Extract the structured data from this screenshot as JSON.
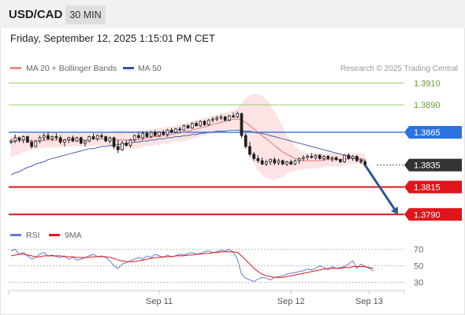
{
  "header": {
    "symbol": "USD/CAD",
    "interval": "30 MIN",
    "datetime": "Friday, September 12, 2025 1:15:01 PM CET"
  },
  "legend": {
    "items": [
      {
        "label": "MA 20 + Bollinger Bands",
        "color": "#f2898a"
      },
      {
        "label": "MA 50",
        "color": "#2b5797"
      }
    ],
    "copyright": "Research © 2025 Trading Central"
  },
  "colors": {
    "up": "#1f1f1f",
    "down": "#1f1f1f",
    "ma20": "#e57373",
    "ma50": "#4a5fa8",
    "bollinger_fill": "#fde0e0",
    "resistance": "#9cc96b",
    "pivot": "#2a73e0",
    "support": "#e0151b",
    "arrow": "#2b5797",
    "last_price_bg": "#333333"
  },
  "levels": [
    {
      "name": "resistance-2",
      "value": 1.391,
      "label": "1.3910",
      "style": "resistance"
    },
    {
      "name": "resistance-1",
      "value": 1.389,
      "label": "1.3890",
      "style": "resistance"
    },
    {
      "name": "pivot",
      "value": 1.3865,
      "label": "1.3865",
      "style": "pivot"
    },
    {
      "name": "last-price",
      "value": 1.3835,
      "label": "1.3835",
      "style": "last"
    },
    {
      "name": "support-1",
      "value": 1.3815,
      "label": "1.3815",
      "style": "support"
    },
    {
      "name": "support-2",
      "value": 1.379,
      "label": "1.3790",
      "style": "support"
    }
  ],
  "rsi_panel": {
    "legend": [
      {
        "label": "RSI",
        "color": "#5b7fd6"
      },
      {
        "label": "9MA",
        "color": "#e0151b"
      }
    ],
    "ticks": [
      70,
      50,
      30
    ]
  },
  "x_axis": {
    "labels": [
      {
        "label": "Sep 11",
        "index": 36
      },
      {
        "label": "Sep 12",
        "index": 68
      },
      {
        "label": "Sep 13",
        "index": 87
      }
    ]
  },
  "chart_data": {
    "type": "candlestick",
    "price_ylim": [
      1.3783,
      1.3916
    ],
    "x_count": 95,
    "candles": [
      [
        1.3856,
        1.3859,
        1.3854,
        1.3857
      ],
      [
        1.3857,
        1.3863,
        1.3855,
        1.386
      ],
      [
        1.386,
        1.3861,
        1.3856,
        1.3858
      ],
      [
        1.3858,
        1.3862,
        1.3855,
        1.3861
      ],
      [
        1.3861,
        1.3862,
        1.3855,
        1.3856
      ],
      [
        1.3856,
        1.3858,
        1.385,
        1.3852
      ],
      [
        1.3852,
        1.3858,
        1.3851,
        1.3857
      ],
      [
        1.3857,
        1.3862,
        1.3855,
        1.386
      ],
      [
        1.386,
        1.3864,
        1.3857,
        1.3862
      ],
      [
        1.3862,
        1.3865,
        1.3858,
        1.3859
      ],
      [
        1.3859,
        1.3862,
        1.3857,
        1.3861
      ],
      [
        1.3861,
        1.3864,
        1.3858,
        1.386
      ],
      [
        1.386,
        1.3862,
        1.3854,
        1.3856
      ],
      [
        1.3856,
        1.3859,
        1.3852,
        1.3858
      ],
      [
        1.3858,
        1.3861,
        1.3855,
        1.386
      ],
      [
        1.386,
        1.3862,
        1.3856,
        1.3857
      ],
      [
        1.3857,
        1.3861,
        1.3856,
        1.386
      ],
      [
        1.386,
        1.3861,
        1.3854,
        1.3855
      ],
      [
        1.3855,
        1.3858,
        1.3852,
        1.3857
      ],
      [
        1.3857,
        1.3862,
        1.3856,
        1.3861
      ],
      [
        1.3861,
        1.3864,
        1.3858,
        1.3859
      ],
      [
        1.3859,
        1.3863,
        1.3857,
        1.3862
      ],
      [
        1.3862,
        1.3864,
        1.3859,
        1.3861
      ],
      [
        1.3861,
        1.3862,
        1.3856,
        1.3857
      ],
      [
        1.3857,
        1.3861,
        1.3855,
        1.386
      ],
      [
        1.386,
        1.3861,
        1.385,
        1.3852
      ],
      [
        1.3852,
        1.3858,
        1.3846,
        1.3849
      ],
      [
        1.3849,
        1.3857,
        1.3848,
        1.3855
      ],
      [
        1.3855,
        1.3858,
        1.3852,
        1.3853
      ],
      [
        1.3853,
        1.3859,
        1.3851,
        1.3858
      ],
      [
        1.3858,
        1.3863,
        1.3856,
        1.3862
      ],
      [
        1.3862,
        1.3865,
        1.3859,
        1.386
      ],
      [
        1.386,
        1.3866,
        1.3858,
        1.3864
      ],
      [
        1.3864,
        1.3866,
        1.386,
        1.3861
      ],
      [
        1.3861,
        1.3866,
        1.386,
        1.3865
      ],
      [
        1.3865,
        1.3867,
        1.3861,
        1.3862
      ],
      [
        1.3862,
        1.3866,
        1.3861,
        1.3865
      ],
      [
        1.3865,
        1.3867,
        1.3862,
        1.3863
      ],
      [
        1.3863,
        1.3868,
        1.3861,
        1.3867
      ],
      [
        1.3867,
        1.3869,
        1.3864,
        1.3865
      ],
      [
        1.3865,
        1.3869,
        1.3864,
        1.3868
      ],
      [
        1.3868,
        1.387,
        1.3866,
        1.3867
      ],
      [
        1.3867,
        1.3872,
        1.3866,
        1.3871
      ],
      [
        1.3871,
        1.3872,
        1.3868,
        1.3869
      ],
      [
        1.3869,
        1.3874,
        1.3868,
        1.3873
      ],
      [
        1.3873,
        1.3875,
        1.387,
        1.3871
      ],
      [
        1.3871,
        1.3876,
        1.387,
        1.3875
      ],
      [
        1.3875,
        1.3876,
        1.3871,
        1.3872
      ],
      [
        1.3872,
        1.3877,
        1.3871,
        1.3876
      ],
      [
        1.3876,
        1.3879,
        1.3874,
        1.3877
      ],
      [
        1.3877,
        1.388,
        1.3875,
        1.3878
      ],
      [
        1.3878,
        1.3881,
        1.3876,
        1.3879
      ],
      [
        1.3879,
        1.388,
        1.3875,
        1.3876
      ],
      [
        1.3876,
        1.3881,
        1.3875,
        1.388
      ],
      [
        1.388,
        1.3883,
        1.3878,
        1.3879
      ],
      [
        1.3879,
        1.3884,
        1.3878,
        1.3882
      ],
      [
        1.3882,
        1.3883,
        1.386,
        1.3862
      ],
      [
        1.3862,
        1.3864,
        1.385,
        1.3852
      ],
      [
        1.3852,
        1.3856,
        1.3843,
        1.3845
      ],
      [
        1.3845,
        1.3847,
        1.3839,
        1.3841
      ],
      [
        1.3841,
        1.3844,
        1.3837,
        1.3839
      ],
      [
        1.3839,
        1.3842,
        1.3835,
        1.3836
      ],
      [
        1.3836,
        1.384,
        1.3834,
        1.3838
      ],
      [
        1.3838,
        1.3841,
        1.3835,
        1.384
      ],
      [
        1.384,
        1.3842,
        1.3835,
        1.3837
      ],
      [
        1.3837,
        1.3841,
        1.3835,
        1.3839
      ],
      [
        1.3839,
        1.384,
        1.3835,
        1.3836
      ],
      [
        1.3836,
        1.3839,
        1.3834,
        1.3838
      ],
      [
        1.3838,
        1.384,
        1.3835,
        1.3836
      ],
      [
        1.3836,
        1.384,
        1.3835,
        1.3839
      ],
      [
        1.3839,
        1.3842,
        1.3836,
        1.3841
      ],
      [
        1.3841,
        1.3844,
        1.3839,
        1.3842
      ],
      [
        1.3842,
        1.3845,
        1.384,
        1.3843
      ],
      [
        1.3843,
        1.3846,
        1.3841,
        1.3842
      ],
      [
        1.3842,
        1.3845,
        1.384,
        1.3844
      ],
      [
        1.3844,
        1.3845,
        1.384,
        1.3841
      ],
      [
        1.3841,
        1.3844,
        1.3839,
        1.3843
      ],
      [
        1.3843,
        1.3844,
        1.384,
        1.3841
      ],
      [
        1.3841,
        1.3843,
        1.3838,
        1.3842
      ],
      [
        1.3842,
        1.3843,
        1.3839,
        1.384
      ],
      [
        1.384,
        1.3841,
        1.3837,
        1.3838
      ],
      [
        1.3838,
        1.3845,
        1.3837,
        1.3844
      ],
      [
        1.3844,
        1.3846,
        1.384,
        1.3841
      ],
      [
        1.3841,
        1.3844,
        1.3839,
        1.3843
      ],
      [
        1.3843,
        1.3844,
        1.3838,
        1.3839
      ],
      [
        1.3839,
        1.3841,
        1.3836,
        1.3838
      ],
      [
        1.3838,
        1.384,
        1.3834,
        1.3835
      ]
    ],
    "ma20": [
      1.3856,
      1.3857,
      1.3857,
      1.3858,
      1.3858,
      1.3857,
      1.3857,
      1.3857,
      1.3858,
      1.3858,
      1.3858,
      1.3858,
      1.3858,
      1.3858,
      1.3858,
      1.3858,
      1.3858,
      1.3858,
      1.3858,
      1.3858,
      1.3859,
      1.3859,
      1.3859,
      1.3859,
      1.3859,
      1.3858,
      1.3858,
      1.3858,
      1.3858,
      1.3858,
      1.3858,
      1.3858,
      1.3859,
      1.386,
      1.386,
      1.3861,
      1.3861,
      1.3862,
      1.3862,
      1.3863,
      1.3864,
      1.3864,
      1.3865,
      1.3866,
      1.3867,
      1.3868,
      1.3869,
      1.387,
      1.3871,
      1.3872,
      1.3873,
      1.3874,
      1.3875,
      1.3876,
      1.3877,
      1.3877,
      1.3876,
      1.3874,
      1.3871,
      1.3868,
      1.3865,
      1.3862,
      1.3859,
      1.3856,
      1.3853,
      1.385,
      1.3847,
      1.3845,
      1.3843,
      1.3841,
      1.384,
      1.3839,
      1.3839,
      1.3839,
      1.3839,
      1.3839,
      1.384,
      1.384,
      1.384,
      1.384,
      1.384,
      1.384,
      1.3841,
      1.3841,
      1.3841,
      1.3841,
      1.384
    ],
    "bollinger_upper": [
      1.3862,
      1.3863,
      1.3863,
      1.3864,
      1.3864,
      1.3864,
      1.3864,
      1.3864,
      1.3865,
      1.3865,
      1.3865,
      1.3865,
      1.3865,
      1.3864,
      1.3864,
      1.3864,
      1.3864,
      1.3864,
      1.3864,
      1.3864,
      1.3864,
      1.3865,
      1.3865,
      1.3865,
      1.3865,
      1.3866,
      1.3867,
      1.3867,
      1.3866,
      1.3866,
      1.3866,
      1.3866,
      1.3867,
      1.3867,
      1.3868,
      1.3868,
      1.3869,
      1.3869,
      1.387,
      1.387,
      1.3871,
      1.3872,
      1.3873,
      1.3874,
      1.3875,
      1.3876,
      1.3877,
      1.3878,
      1.3879,
      1.388,
      1.3881,
      1.3882,
      1.3883,
      1.3884,
      1.3885,
      1.3887,
      1.3891,
      1.3896,
      1.3899,
      1.39,
      1.39,
      1.3898,
      1.3895,
      1.389,
      1.3884,
      1.3877,
      1.387,
      1.3862,
      1.3857,
      1.3852,
      1.3849,
      1.3847,
      1.3846,
      1.3846,
      1.3846,
      1.3846,
      1.3846,
      1.3846,
      1.3846,
      1.3846,
      1.3846,
      1.3846,
      1.3846,
      1.3846,
      1.3846,
      1.3846,
      1.3845
    ],
    "bollinger_lower": [
      1.3842,
      1.3844,
      1.3845,
      1.3847,
      1.3848,
      1.3849,
      1.385,
      1.385,
      1.3851,
      1.3851,
      1.3851,
      1.3851,
      1.3851,
      1.3852,
      1.3852,
      1.3852,
      1.3852,
      1.3852,
      1.3852,
      1.3852,
      1.3853,
      1.3853,
      1.3853,
      1.3853,
      1.3852,
      1.385,
      1.3849,
      1.3849,
      1.385,
      1.385,
      1.385,
      1.385,
      1.3851,
      1.3853,
      1.3852,
      1.3854,
      1.3853,
      1.3855,
      1.3854,
      1.3856,
      1.3857,
      1.3856,
      1.3857,
      1.3858,
      1.3859,
      1.386,
      1.3861,
      1.3862,
      1.3863,
      1.3864,
      1.3865,
      1.3866,
      1.3867,
      1.3868,
      1.3869,
      1.3867,
      1.3861,
      1.3852,
      1.3843,
      1.3836,
      1.383,
      1.3826,
      1.3823,
      1.3822,
      1.3822,
      1.3823,
      1.3824,
      1.3828,
      1.3829,
      1.383,
      1.3831,
      1.3831,
      1.3832,
      1.3832,
      1.3832,
      1.3832,
      1.3834,
      1.3834,
      1.3834,
      1.3834,
      1.3834,
      1.3834,
      1.3836,
      1.3836,
      1.3836,
      1.3836,
      1.3835
    ],
    "ma50": [
      1.3826,
      1.3828,
      1.3829,
      1.3831,
      1.3833,
      1.3834,
      1.3836,
      1.3837,
      1.3838,
      1.384,
      1.3841,
      1.3842,
      1.3843,
      1.3844,
      1.3845,
      1.3846,
      1.3847,
      1.3848,
      1.3849,
      1.385,
      1.385,
      1.3851,
      1.3852,
      1.3852,
      1.3853,
      1.3853,
      1.3854,
      1.3854,
      1.3855,
      1.3855,
      1.3856,
      1.3856,
      1.3857,
      1.3857,
      1.3858,
      1.3858,
      1.3859,
      1.3859,
      1.386,
      1.386,
      1.3861,
      1.3861,
      1.3862,
      1.3862,
      1.3863,
      1.3863,
      1.3864,
      1.3864,
      1.3865,
      1.3865,
      1.3866,
      1.3866,
      1.3866,
      1.3867,
      1.3867,
      1.3867,
      1.3867,
      1.3866,
      1.3866,
      1.3865,
      1.3864,
      1.3864,
      1.3863,
      1.3862,
      1.3861,
      1.386,
      1.3859,
      1.3858,
      1.3857,
      1.3856,
      1.3855,
      1.3854,
      1.3853,
      1.3852,
      1.3851,
      1.385,
      1.3849,
      1.3848,
      1.3847,
      1.3846,
      1.3845,
      1.3844,
      1.3843,
      1.3842,
      1.3841,
      1.384,
      1.3839
    ],
    "projection": {
      "from_index": 86,
      "from_value": 1.3835,
      "to_index": 94,
      "to_value": 1.379
    },
    "rsi": [
      68,
      70,
      64,
      66,
      62,
      58,
      60,
      64,
      66,
      62,
      63,
      61,
      60,
      62,
      58,
      60,
      57,
      58,
      60,
      62,
      64,
      61,
      62,
      60,
      56,
      50,
      47,
      52,
      54,
      56,
      58,
      60,
      58,
      62,
      60,
      64,
      62,
      60,
      63,
      61,
      62,
      64,
      63,
      65,
      66,
      64,
      65,
      67,
      68,
      66,
      67,
      69,
      68,
      70,
      66,
      58,
      40,
      35,
      33,
      31,
      34,
      36,
      35,
      33,
      36,
      37,
      38,
      40,
      41,
      42,
      43,
      44,
      46,
      45,
      47,
      50,
      48,
      45,
      49,
      47,
      48,
      49,
      52,
      56,
      47,
      52,
      49,
      47,
      44
    ],
    "rsi_ma": [
      62,
      63,
      64,
      64,
      63,
      62,
      61,
      61,
      62,
      62,
      62,
      62,
      62,
      61,
      61,
      61,
      60,
      60,
      60,
      60,
      61,
      61,
      61,
      61,
      60,
      59,
      57,
      56,
      55,
      55,
      55,
      56,
      57,
      58,
      59,
      60,
      60,
      61,
      61,
      61,
      62,
      62,
      62,
      63,
      63,
      64,
      64,
      65,
      65,
      66,
      66,
      67,
      67,
      67,
      67,
      66,
      62,
      57,
      52,
      47,
      43,
      40,
      38,
      37,
      36,
      36,
      36,
      37,
      38,
      39,
      40,
      41,
      42,
      43,
      44,
      45,
      46,
      47,
      47,
      47,
      47,
      48,
      48,
      49,
      49,
      49,
      49,
      48,
      47
    ],
    "rsi_ylim": [
      22,
      80
    ]
  }
}
